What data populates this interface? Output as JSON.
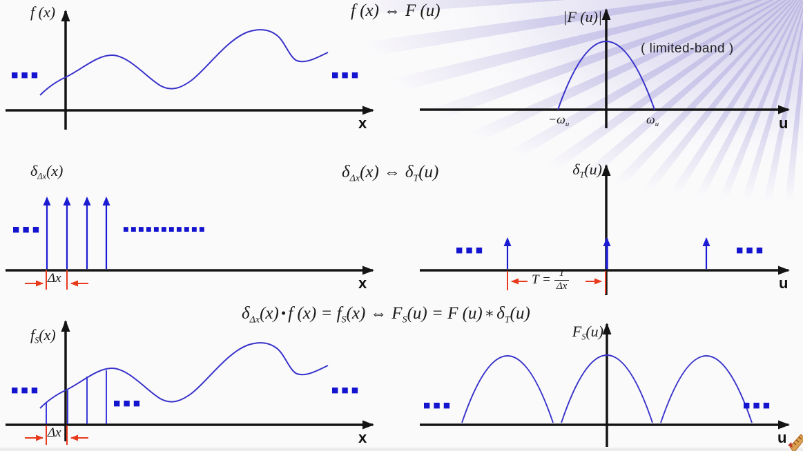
{
  "title_hint": "sampling theorem slide",
  "colors": {
    "page_bg": "#fbfafb",
    "axis": "#141414",
    "signal_curve": "#3732c9",
    "impulse_blue": "#1b1bd4",
    "dots_blue": "#1414cf",
    "measure_red": "#e8391b",
    "ray_tint": "#8f87cf",
    "deco_tan": "#d8a050"
  },
  "row1": {
    "formula": [
      {
        "t": "f (x)"
      },
      {
        "t": "⇔",
        "cls": "rel"
      },
      {
        "t": "F (u)"
      }
    ],
    "left": {
      "label": [
        {
          "t": "f (x)"
        }
      ],
      "axis_x": "x",
      "dots_left": "■■■",
      "dots_right": "■■■"
    },
    "right": {
      "label": [
        {
          "t": "|F (u)|"
        }
      ],
      "axis_x": "u",
      "band_note": "( limited-band )",
      "neg_tick": [
        {
          "t": "−ω"
        },
        {
          "t": "u",
          "sub": true
        }
      ],
      "pos_tick": [
        {
          "t": "ω"
        },
        {
          "t": "u",
          "sub": true
        }
      ]
    }
  },
  "row2": {
    "formula": [
      {
        "t": "δ"
      },
      {
        "t": "Δx",
        "sub": true
      },
      {
        "t": "(x)"
      },
      {
        "t": "⇔",
        "cls": "rel"
      },
      {
        "t": "δ"
      },
      {
        "t": "T",
        "sub": true
      },
      {
        "t": "(u)"
      }
    ],
    "left": {
      "label": [
        {
          "t": "δ"
        },
        {
          "t": "Δx",
          "sub": true
        },
        {
          "t": "(x)"
        }
      ],
      "axis_x": "x",
      "dots_left": "■■■",
      "dash_row": "■■■■■■■■■■■",
      "measure": "Δx"
    },
    "right": {
      "label": [
        {
          "t": "δ"
        },
        {
          "t": "T",
          "sub": true
        },
        {
          "t": "(u)"
        }
      ],
      "axis_x": "u",
      "dots_left": "■■■",
      "dots_right": "■■■",
      "measure_prefix": "T =",
      "measure_num": "1",
      "measure_den": "Δx"
    }
  },
  "row3": {
    "formula": [
      {
        "t": "δ"
      },
      {
        "t": "Δx",
        "sub": true
      },
      {
        "t": "(x)"
      },
      {
        "t": "•",
        "cls": "op"
      },
      {
        "t": "f (x) = f"
      },
      {
        "t": "S",
        "sub": true
      },
      {
        "t": "(x)"
      },
      {
        "t": "⇔",
        "cls": "rel"
      },
      {
        "t": "F"
      },
      {
        "t": "S",
        "sub": true
      },
      {
        "t": "(u) = F (u)"
      },
      {
        "t": "∗",
        "cls": "op"
      },
      {
        "t": "δ"
      },
      {
        "t": "T",
        "sub": true
      },
      {
        "t": "(u)"
      }
    ],
    "left": {
      "label": [
        {
          "t": "f"
        },
        {
          "t": "S",
          "sub": true
        },
        {
          "t": "(x)"
        }
      ],
      "axis_x": "x",
      "dots_left": "■■■",
      "dots_mid": "■■■",
      "dots_right": "■■■",
      "measure": "Δx"
    },
    "right": {
      "label": [
        {
          "t": "F"
        },
        {
          "t": "S",
          "sub": true
        },
        {
          "t": "(u)"
        }
      ],
      "axis_x": "u",
      "dots_left": "■■■",
      "dots_right": "■■■"
    }
  }
}
